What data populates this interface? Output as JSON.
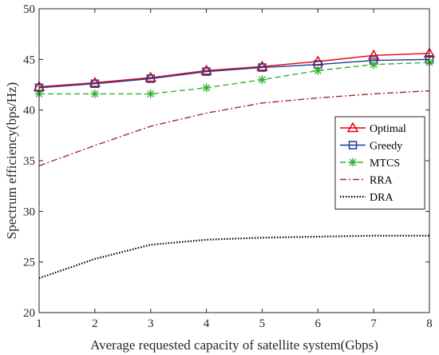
{
  "chart_data": {
    "type": "line",
    "xlabel": "Average requested capacity of satellite system(Gbps)",
    "ylabel": "Spectrum efficiency(bps/Hz)",
    "xlim": [
      1,
      8
    ],
    "ylim": [
      20,
      50
    ],
    "x": [
      1,
      2,
      3,
      4,
      5,
      6,
      7,
      8
    ],
    "xticks": [
      "1",
      "2",
      "3",
      "4",
      "5",
      "6",
      "7",
      "8"
    ],
    "yticks": [
      "20",
      "25",
      "30",
      "35",
      "40",
      "45",
      "50"
    ],
    "grid": false,
    "legend_position": "right",
    "series": [
      {
        "name": "Optimal",
        "values": [
          42.3,
          42.7,
          43.2,
          43.9,
          44.3,
          44.8,
          45.4,
          45.6
        ],
        "color": "#e8000b",
        "dash": "solid",
        "marker": "triangle"
      },
      {
        "name": "Greedy",
        "values": [
          42.2,
          42.6,
          43.1,
          43.8,
          44.2,
          44.5,
          44.9,
          45.0
        ],
        "color": "#1f3a93",
        "dash": "solid",
        "marker": "square"
      },
      {
        "name": "MTCS",
        "values": [
          41.6,
          41.6,
          41.6,
          42.2,
          43.0,
          43.9,
          44.5,
          44.7
        ],
        "color": "#33b033",
        "dash": "dashed",
        "marker": "star"
      },
      {
        "name": "RRA",
        "values": [
          34.5,
          36.5,
          38.4,
          39.7,
          40.7,
          41.2,
          41.6,
          41.9
        ],
        "color": "#a52a2a",
        "dash": "dashdot",
        "marker": "none"
      },
      {
        "name": "DRA",
        "values": [
          23.4,
          25.3,
          26.7,
          27.2,
          27.4,
          27.5,
          27.6,
          27.6
        ],
        "color": "#000000",
        "dash": "dotted",
        "marker": "none"
      }
    ]
  }
}
